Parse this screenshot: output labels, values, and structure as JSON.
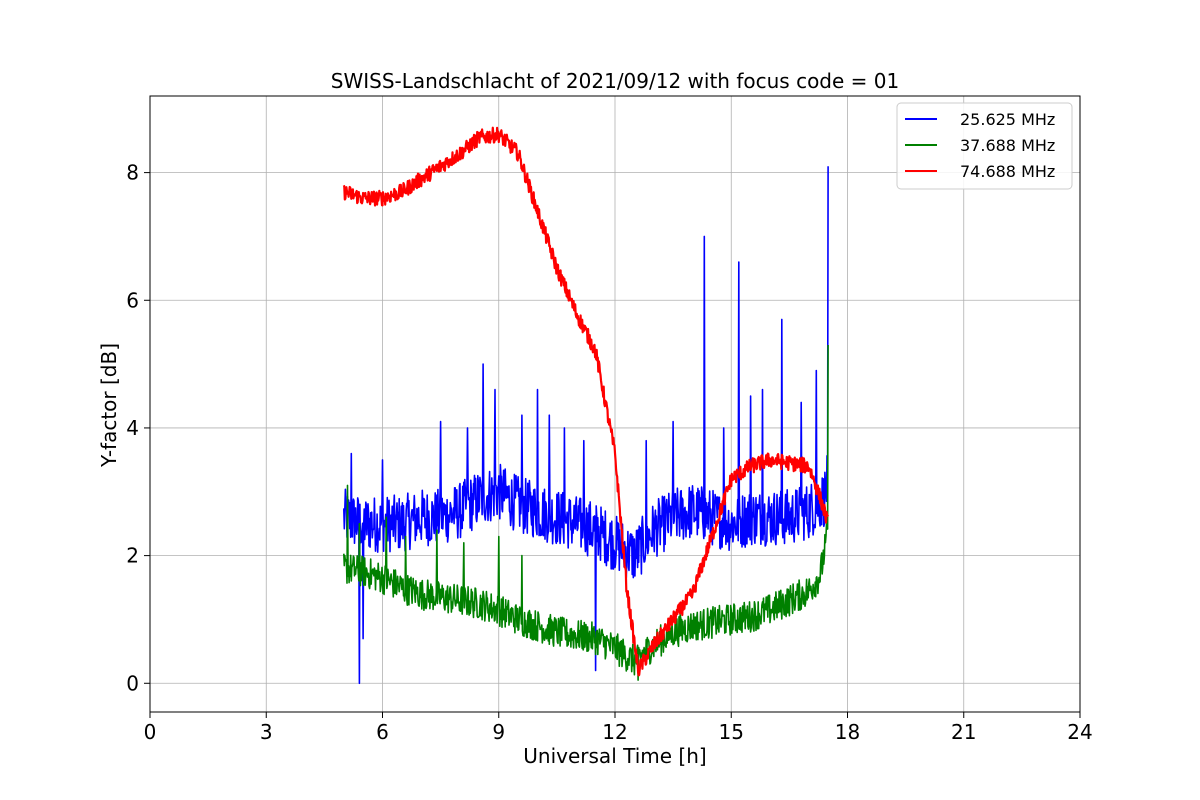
{
  "chart_data": {
    "type": "line",
    "title": "SWISS-Landschlacht of 2021/09/12 with focus code = 01",
    "xlabel": "Universal Time [h]",
    "ylabel": "Y-factor [dB]",
    "xlim": [
      0,
      24
    ],
    "ylim": [
      -0.45,
      9.2
    ],
    "xticks": [
      0,
      3,
      6,
      9,
      12,
      15,
      18,
      21,
      24
    ],
    "yticks": [
      0,
      2,
      4,
      6,
      8
    ],
    "xtick_labels": [
      "0",
      "3",
      "6",
      "9",
      "12",
      "15",
      "18",
      "21",
      "24"
    ],
    "ytick_labels": [
      "0",
      "2",
      "4",
      "6",
      "8"
    ],
    "grid": true,
    "legend_position": "top-right",
    "series": [
      {
        "name": "25.625 MHz",
        "color": "#0000ff",
        "noise_amplitude": 0.45,
        "x": [
          5.0,
          5.5,
          6.0,
          6.5,
          7.0,
          7.5,
          8.0,
          8.5,
          9.0,
          9.5,
          10.0,
          10.5,
          11.0,
          11.5,
          12.0,
          12.5,
          13.0,
          13.5,
          14.0,
          14.5,
          15.0,
          15.5,
          16.0,
          16.5,
          17.0,
          17.4,
          17.5
        ],
        "values": [
          2.6,
          2.5,
          2.5,
          2.5,
          2.6,
          2.6,
          2.7,
          2.9,
          3.0,
          2.8,
          2.7,
          2.6,
          2.5,
          2.4,
          2.2,
          2.0,
          2.4,
          2.6,
          2.7,
          2.6,
          2.5,
          2.6,
          2.6,
          2.6,
          2.7,
          2.9,
          3.2
        ],
        "spikes": [
          [
            5.2,
            3.6
          ],
          [
            5.4,
            0.0
          ],
          [
            5.5,
            0.7
          ],
          [
            6.0,
            3.5
          ],
          [
            7.5,
            4.1
          ],
          [
            8.2,
            4.0
          ],
          [
            8.6,
            5.0
          ],
          [
            8.9,
            4.6
          ],
          [
            9.6,
            4.2
          ],
          [
            10.0,
            4.6
          ],
          [
            10.3,
            4.2
          ],
          [
            10.7,
            4.0
          ],
          [
            11.2,
            3.8
          ],
          [
            11.5,
            0.2
          ],
          [
            12.8,
            3.8
          ],
          [
            13.5,
            4.1
          ],
          [
            14.3,
            7.0
          ],
          [
            14.8,
            4.0
          ],
          [
            15.2,
            6.6
          ],
          [
            15.5,
            4.5
          ],
          [
            15.8,
            4.6
          ],
          [
            16.3,
            5.7
          ],
          [
            16.8,
            4.4
          ],
          [
            17.2,
            4.9
          ],
          [
            17.5,
            8.1
          ]
        ]
      },
      {
        "name": "37.688 MHz",
        "color": "#008000",
        "noise_amplitude": 0.25,
        "x": [
          5.0,
          5.5,
          6.0,
          6.5,
          7.0,
          7.5,
          8.0,
          8.5,
          9.0,
          9.5,
          10.0,
          10.5,
          11.0,
          11.5,
          12.0,
          12.5,
          13.0,
          13.5,
          14.0,
          14.5,
          15.0,
          15.5,
          16.0,
          16.5,
          17.0,
          17.3,
          17.5
        ],
        "values": [
          1.8,
          1.75,
          1.65,
          1.5,
          1.4,
          1.35,
          1.3,
          1.25,
          1.15,
          1.0,
          0.9,
          0.8,
          0.75,
          0.7,
          0.55,
          0.35,
          0.6,
          0.8,
          0.9,
          0.95,
          1.0,
          1.05,
          1.15,
          1.3,
          1.45,
          1.7,
          2.4
        ],
        "spikes": [
          [
            5.1,
            3.1
          ],
          [
            5.4,
            2.5
          ],
          [
            6.1,
            2.6
          ],
          [
            6.6,
            2.3
          ],
          [
            7.4,
            2.4
          ],
          [
            8.1,
            2.2
          ],
          [
            9.0,
            2.3
          ],
          [
            9.6,
            2.0
          ],
          [
            12.6,
            0.05
          ],
          [
            17.5,
            5.3
          ]
        ]
      },
      {
        "name": "74.688 MHz",
        "color": "#ff0000",
        "noise_amplitude": 0.12,
        "x": [
          5.0,
          5.5,
          6.0,
          6.5,
          7.0,
          7.5,
          8.0,
          8.5,
          9.0,
          9.5,
          10.0,
          10.5,
          11.0,
          11.5,
          12.0,
          12.3,
          12.6,
          13.0,
          13.5,
          14.0,
          14.5,
          15.0,
          15.5,
          16.0,
          16.5,
          17.0,
          17.3,
          17.5
        ],
        "values": [
          7.7,
          7.6,
          7.6,
          7.7,
          7.9,
          8.1,
          8.3,
          8.55,
          8.6,
          8.3,
          7.4,
          6.5,
          5.8,
          5.2,
          3.6,
          1.5,
          0.2,
          0.6,
          1.0,
          1.4,
          2.3,
          3.2,
          3.4,
          3.5,
          3.45,
          3.4,
          2.9,
          2.5
        ],
        "spikes": []
      }
    ]
  }
}
